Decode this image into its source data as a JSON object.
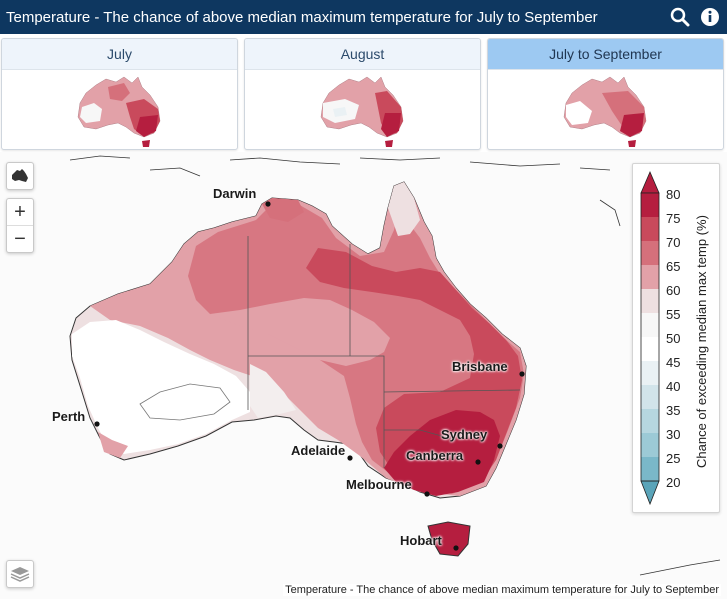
{
  "header": {
    "title": "Temperature - The chance of above median maximum temperature for July to September",
    "icons": [
      "search-icon",
      "info-icon"
    ]
  },
  "tabs": [
    {
      "label": "July",
      "active": false
    },
    {
      "label": "August",
      "active": false
    },
    {
      "label": "July to September",
      "active": true
    }
  ],
  "map": {
    "cities": [
      "Darwin",
      "Brisbane",
      "Perth",
      "Sydney",
      "Adelaide",
      "Canberra",
      "Melbourne",
      "Hobart"
    ],
    "attribution": "Temperature - The chance of above median maximum temperature for July to September"
  },
  "legend": {
    "title": "Chance of exceeding median max temp (%)",
    "ticks": [
      "80",
      "75",
      "70",
      "65",
      "60",
      "55",
      "50",
      "45",
      "40",
      "35",
      "30",
      "25",
      "20"
    ],
    "colors": {
      "c80": "#b51e3f",
      "c75": "#c94a5c",
      "c70": "#d5707b",
      "c65": "#e2a1a8",
      "c60": "#eee0e1",
      "c55": "#f7f7f7",
      "c50": "#ffffff",
      "c45": "#eaf1f4",
      "c40": "#d2e4ea",
      "c35": "#b6d7e0",
      "c30": "#9ccad6",
      "c25": "#7ab8c9",
      "c20": "#5aa4b9"
    }
  },
  "controls": {
    "zoom_in": "+",
    "zoom_out": "−",
    "icons": [
      "australia-icon",
      "layers-icon"
    ]
  }
}
